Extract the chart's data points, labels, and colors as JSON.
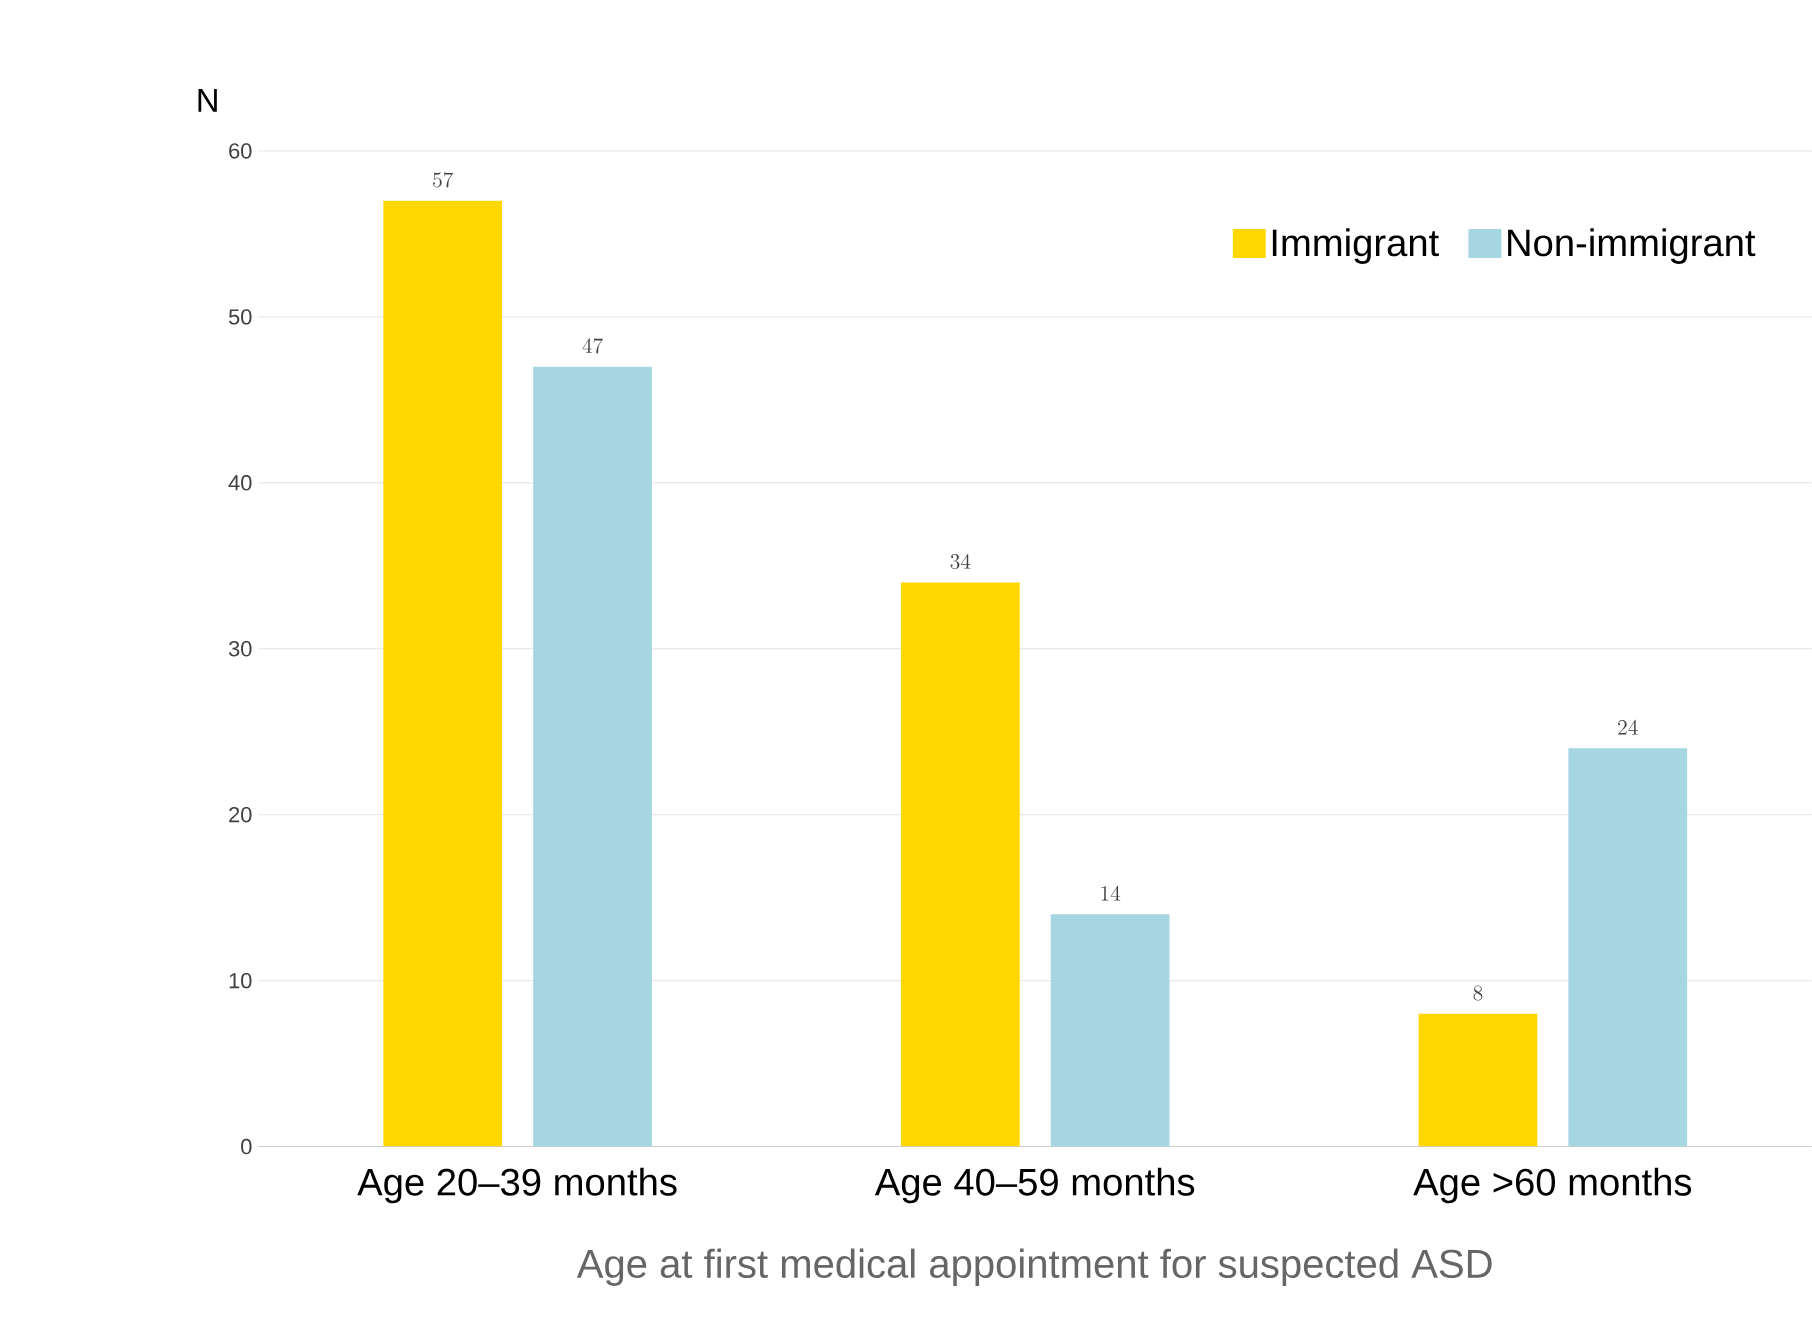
{
  "chart_data": {
    "type": "bar",
    "ylabel": "N",
    "xlabel": "Age at first medical appointment for suspected ASD",
    "categories": [
      "Age 20–39 months",
      "Age 40–59 months",
      "Age >60 months"
    ],
    "series": [
      {
        "name": "Immigrant",
        "color": "#ffd700",
        "values": [
          57,
          34,
          8
        ]
      },
      {
        "name": "Non-immigrant",
        "color": "#a6d6e2",
        "values": [
          47,
          14,
          24
        ]
      }
    ],
    "ylim": [
      0,
      60
    ],
    "yticks": [
      0,
      10,
      20,
      30,
      40,
      50,
      60
    ],
    "grid": "y",
    "legend": "top right",
    "data_labels": true
  }
}
